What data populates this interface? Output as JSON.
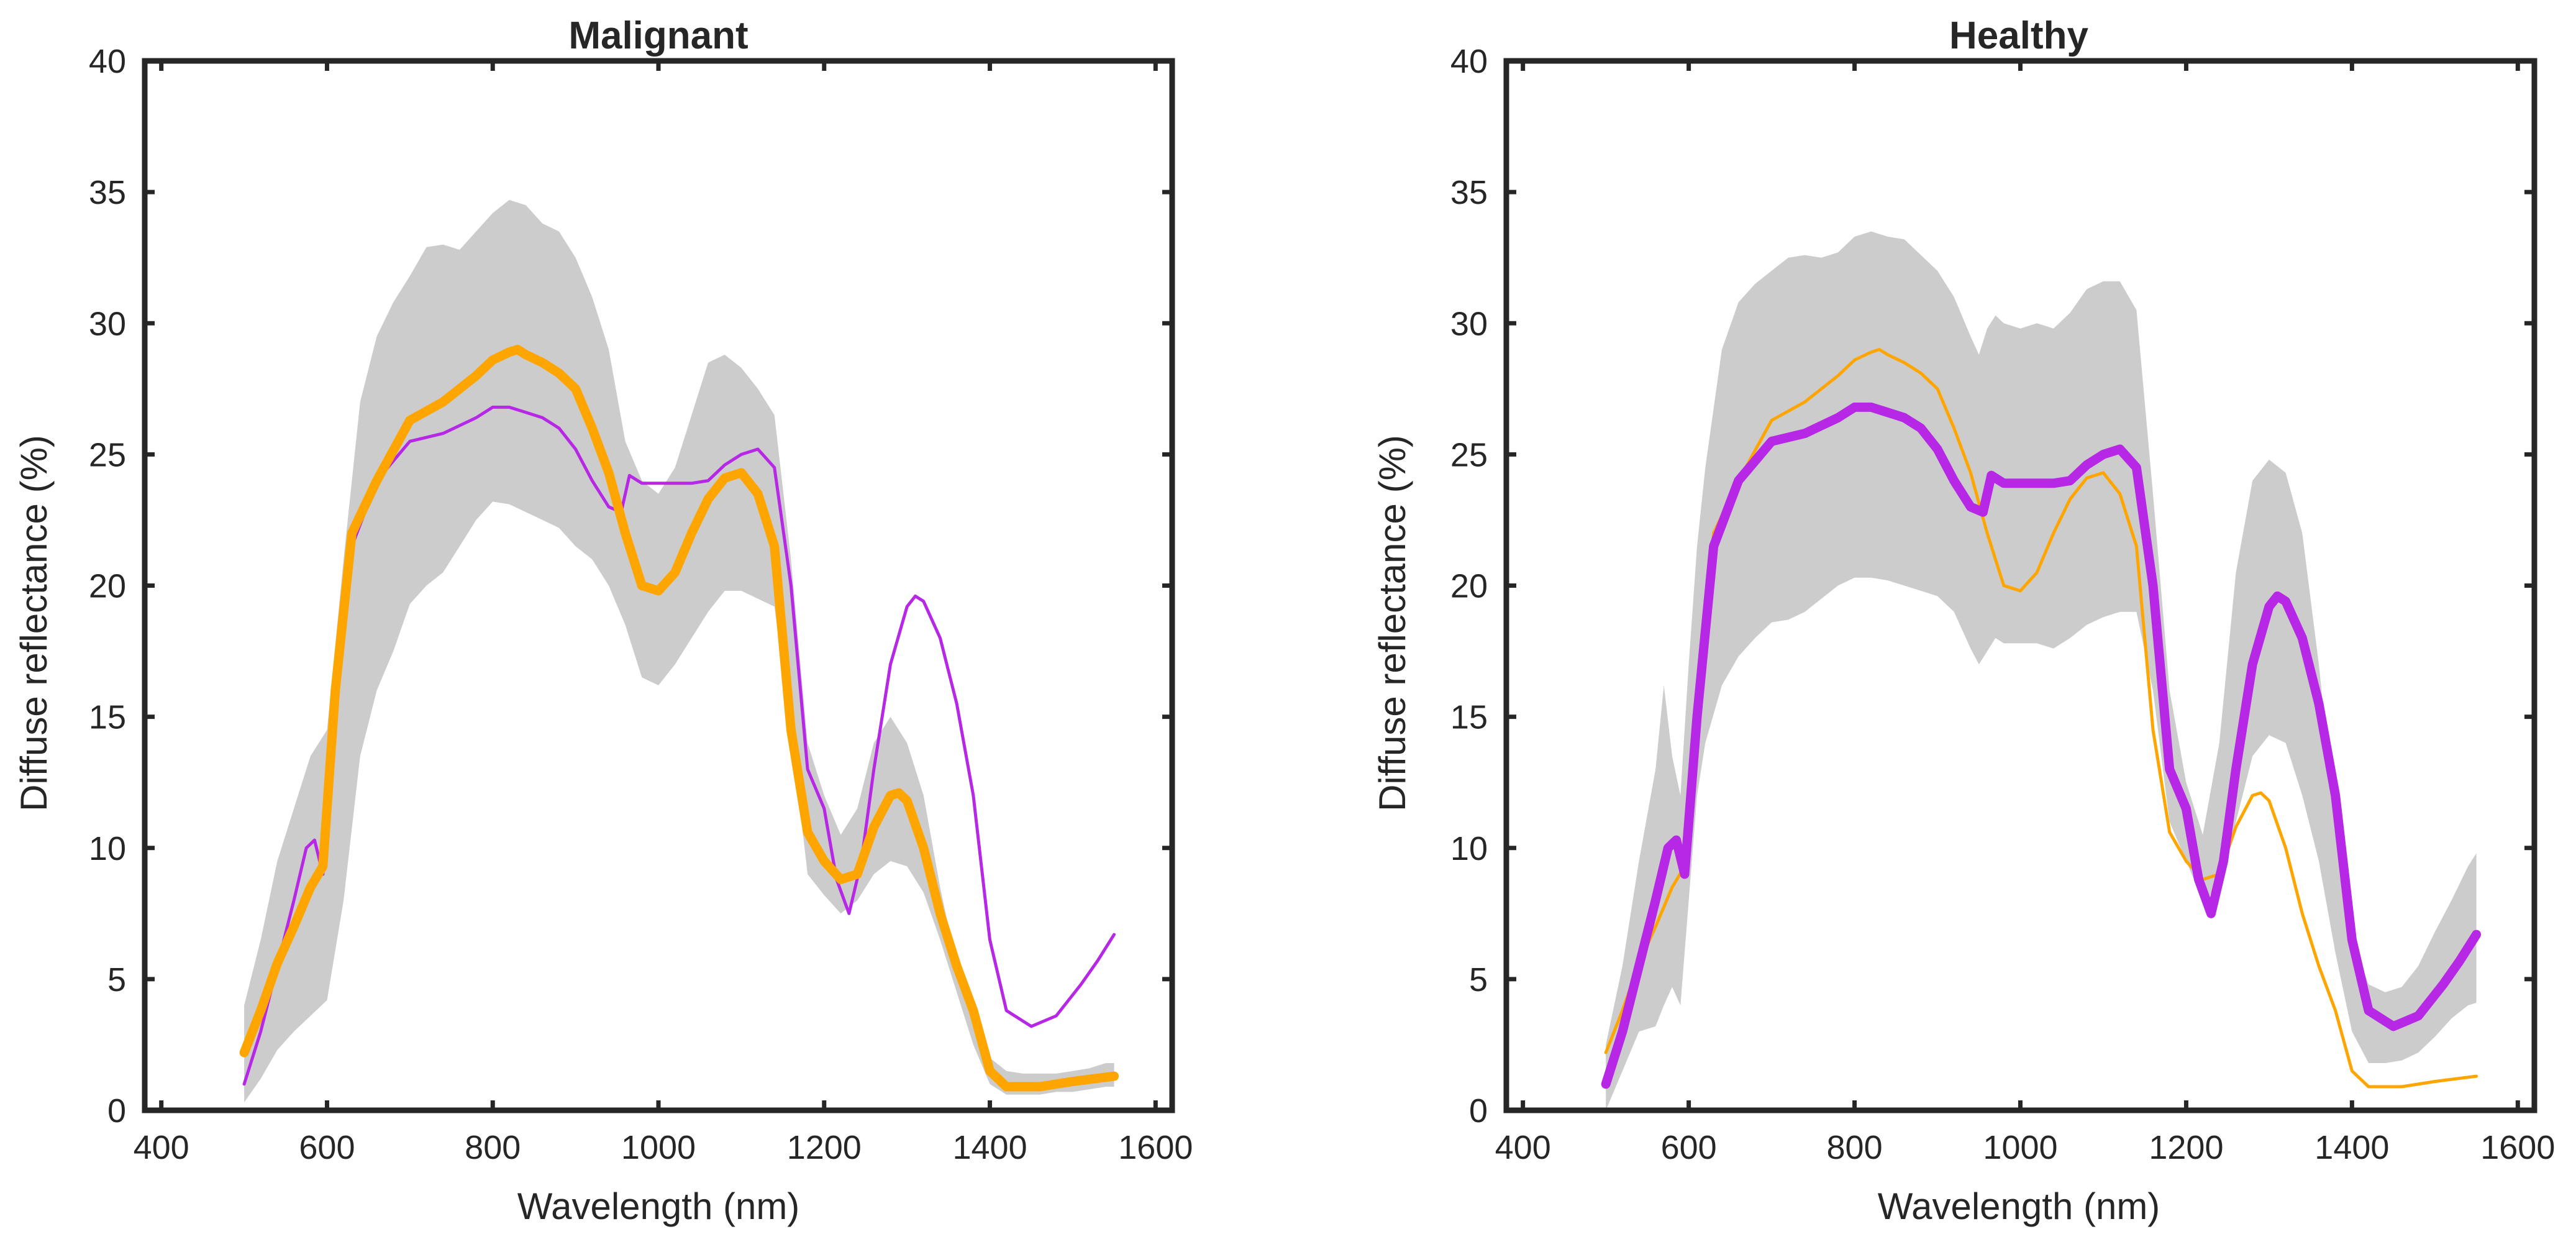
{
  "chart_data": [
    {
      "type": "area",
      "title": "Malignant",
      "xlabel": "Wavelength (nm)",
      "ylabel": "Diffuse reflectance (%)",
      "xlim": [
        380,
        1620
      ],
      "ylim": [
        0,
        40
      ],
      "xticks": [
        400,
        600,
        800,
        1000,
        1200,
        1400,
        1600
      ],
      "yticks": [
        0,
        5,
        10,
        15,
        20,
        25,
        30,
        35,
        40
      ],
      "grid": false,
      "legend": "none",
      "band": {
        "color": "#cccccc",
        "x": [
          500,
          520,
          540,
          560,
          580,
          600,
          620,
          640,
          660,
          680,
          700,
          720,
          740,
          760,
          780,
          800,
          820,
          840,
          860,
          880,
          900,
          920,
          940,
          960,
          980,
          1000,
          1020,
          1040,
          1060,
          1080,
          1100,
          1120,
          1140,
          1160,
          1180,
          1200,
          1220,
          1240,
          1260,
          1280,
          1300,
          1320,
          1340,
          1360,
          1380,
          1400,
          1420,
          1440,
          1460,
          1480,
          1500,
          1520,
          1540,
          1550
        ],
        "lower": [
          0.3,
          1.2,
          2.3,
          3.0,
          3.6,
          4.2,
          8.0,
          13.5,
          16.0,
          17.5,
          19.3,
          20.0,
          20.5,
          21.5,
          22.5,
          23.2,
          23.1,
          22.8,
          22.5,
          22.2,
          21.5,
          21.0,
          20.0,
          18.5,
          16.5,
          16.2,
          17.0,
          18.0,
          19.0,
          19.8,
          19.8,
          19.5,
          19.2,
          14.5,
          9.0,
          8.2,
          7.5,
          8.0,
          9.0,
          9.5,
          9.3,
          8.3,
          6.5,
          4.5,
          2.5,
          1.0,
          0.6,
          0.6,
          0.6,
          0.7,
          0.7,
          0.8,
          0.9,
          0.9
        ],
        "upper": [
          4.0,
          6.5,
          9.5,
          11.5,
          13.5,
          14.5,
          21.0,
          27.0,
          29.5,
          30.8,
          31.8,
          32.9,
          33.0,
          32.8,
          33.5,
          34.2,
          34.7,
          34.5,
          33.8,
          33.5,
          32.5,
          31.0,
          29.0,
          25.5,
          24.0,
          23.5,
          24.5,
          26.5,
          28.5,
          28.8,
          28.3,
          27.5,
          26.5,
          21.0,
          14.0,
          12.0,
          10.5,
          11.5,
          14.0,
          15.0,
          14.0,
          12.0,
          8.5,
          5.5,
          3.5,
          2.0,
          1.5,
          1.4,
          1.4,
          1.4,
          1.5,
          1.6,
          1.8,
          1.8
        ]
      },
      "series": [
        {
          "color": "#b727e6",
          "width": "thin",
          "x": [
            500,
            520,
            540,
            560,
            575,
            585,
            595,
            610,
            630,
            660,
            700,
            740,
            780,
            800,
            820,
            840,
            860,
            880,
            900,
            920,
            940,
            955,
            965,
            980,
            1000,
            1020,
            1040,
            1060,
            1080,
            1100,
            1120,
            1140,
            1160,
            1180,
            1200,
            1215,
            1230,
            1245,
            1260,
            1280,
            1300,
            1310,
            1320,
            1340,
            1360,
            1380,
            1400,
            1420,
            1450,
            1480,
            1510,
            1530,
            1550
          ],
          "y": [
            1.0,
            3.0,
            5.5,
            8.0,
            10.0,
            10.3,
            9.0,
            15.0,
            21.5,
            24.0,
            25.5,
            25.8,
            26.4,
            26.8,
            26.8,
            26.6,
            26.4,
            26.0,
            25.2,
            24.0,
            23.0,
            22.8,
            24.2,
            23.9,
            23.9,
            23.9,
            23.9,
            24.0,
            24.6,
            25.0,
            25.2,
            24.5,
            20.0,
            13.0,
            11.5,
            8.8,
            7.5,
            9.5,
            13.0,
            17.0,
            19.2,
            19.6,
            19.4,
            18.0,
            15.5,
            12.0,
            6.5,
            3.8,
            3.2,
            3.6,
            4.8,
            5.7,
            6.7
          ]
        },
        {
          "color": "#ffa500",
          "width": "thick",
          "x": [
            500,
            520,
            540,
            560,
            580,
            595,
            610,
            630,
            660,
            700,
            740,
            780,
            800,
            820,
            830,
            840,
            860,
            880,
            900,
            920,
            940,
            960,
            980,
            1000,
            1020,
            1040,
            1060,
            1080,
            1100,
            1120,
            1140,
            1160,
            1180,
            1200,
            1220,
            1240,
            1260,
            1280,
            1290,
            1300,
            1320,
            1340,
            1360,
            1380,
            1400,
            1420,
            1440,
            1460,
            1500,
            1550
          ],
          "y": [
            2.2,
            3.8,
            5.6,
            7.0,
            8.5,
            9.3,
            16.0,
            22.0,
            24.0,
            26.3,
            27.0,
            28.0,
            28.6,
            28.9,
            29.0,
            28.8,
            28.5,
            28.1,
            27.5,
            26.0,
            24.3,
            22.0,
            20.0,
            19.8,
            20.5,
            22.0,
            23.3,
            24.1,
            24.3,
            23.5,
            21.5,
            14.5,
            10.6,
            9.5,
            8.8,
            9.0,
            10.8,
            12.0,
            12.1,
            11.8,
            10.0,
            7.5,
            5.5,
            3.8,
            1.5,
            0.9,
            0.9,
            0.9,
            1.1,
            1.3
          ]
        }
      ]
    },
    {
      "type": "area",
      "title": "Healthy",
      "xlabel": "Wavelength (nm)",
      "ylabel": "Diffuse reflectance (%)",
      "xlim": [
        380,
        1620
      ],
      "ylim": [
        0,
        40
      ],
      "xticks": [
        400,
        600,
        800,
        1000,
        1200,
        1400,
        1600
      ],
      "yticks": [
        0,
        5,
        10,
        15,
        20,
        25,
        30,
        35,
        40
      ],
      "grid": false,
      "legend": "none",
      "band": {
        "color": "#cccccc",
        "x": [
          500,
          520,
          540,
          560,
          570,
          580,
          590,
          600,
          610,
          620,
          640,
          660,
          680,
          700,
          720,
          740,
          760,
          780,
          800,
          820,
          840,
          860,
          880,
          900,
          920,
          940,
          950,
          960,
          970,
          980,
          1000,
          1020,
          1040,
          1060,
          1080,
          1100,
          1120,
          1140,
          1160,
          1180,
          1200,
          1220,
          1240,
          1260,
          1280,
          1300,
          1320,
          1340,
          1360,
          1380,
          1400,
          1420,
          1440,
          1460,
          1480,
          1500,
          1520,
          1540,
          1550
        ],
        "lower": [
          0.0,
          1.5,
          3.0,
          3.2,
          4.0,
          4.7,
          4.0,
          8.0,
          12.0,
          14.0,
          16.2,
          17.3,
          18.0,
          18.6,
          18.7,
          19.0,
          19.5,
          20.0,
          20.3,
          20.3,
          20.2,
          20.0,
          19.8,
          19.6,
          19.0,
          17.6,
          17.0,
          17.5,
          18.0,
          17.8,
          17.8,
          17.8,
          17.6,
          18.0,
          18.5,
          18.8,
          19.0,
          19.0,
          16.0,
          11.0,
          9.5,
          8.0,
          8.5,
          11.0,
          13.5,
          14.3,
          14.0,
          12.0,
          9.5,
          6.0,
          3.0,
          1.8,
          1.8,
          1.9,
          2.2,
          2.8,
          3.5,
          4.0,
          4.1
        ],
        "upper": [
          2.5,
          5.5,
          9.5,
          13.0,
          16.2,
          13.5,
          12.0,
          17.0,
          21.5,
          24.5,
          29.0,
          30.8,
          31.5,
          32.0,
          32.5,
          32.6,
          32.5,
          32.7,
          33.3,
          33.5,
          33.3,
          33.2,
          32.6,
          32.0,
          31.0,
          29.5,
          28.8,
          29.8,
          30.3,
          30.0,
          29.8,
          30.0,
          29.8,
          30.4,
          31.3,
          31.6,
          31.6,
          30.5,
          23.5,
          16.0,
          12.5,
          10.5,
          14.0,
          20.5,
          24.0,
          24.8,
          24.3,
          22.0,
          17.0,
          11.0,
          6.5,
          4.8,
          4.5,
          4.7,
          5.5,
          6.8,
          8.0,
          9.3,
          9.8
        ]
      },
      "series": [
        {
          "color": "#ffa500",
          "width": "thin",
          "x": [
            500,
            520,
            540,
            560,
            580,
            595,
            610,
            630,
            660,
            700,
            740,
            780,
            800,
            820,
            830,
            840,
            860,
            880,
            900,
            920,
            940,
            960,
            980,
            1000,
            1020,
            1040,
            1060,
            1080,
            1100,
            1120,
            1140,
            1160,
            1180,
            1200,
            1220,
            1240,
            1260,
            1280,
            1290,
            1300,
            1320,
            1340,
            1360,
            1380,
            1400,
            1420,
            1440,
            1460,
            1500,
            1550
          ],
          "y": [
            2.2,
            3.8,
            5.6,
            7.0,
            8.5,
            9.3,
            16.0,
            22.0,
            24.0,
            26.3,
            27.0,
            28.0,
            28.6,
            28.9,
            29.0,
            28.8,
            28.5,
            28.1,
            27.5,
            26.0,
            24.3,
            22.0,
            20.0,
            19.8,
            20.5,
            22.0,
            23.3,
            24.1,
            24.3,
            23.5,
            21.5,
            14.5,
            10.6,
            9.5,
            8.8,
            9.0,
            10.8,
            12.0,
            12.1,
            11.8,
            10.0,
            7.5,
            5.5,
            3.8,
            1.5,
            0.9,
            0.9,
            0.9,
            1.1,
            1.3
          ]
        },
        {
          "color": "#b727e6",
          "width": "thick",
          "x": [
            500,
            520,
            540,
            560,
            575,
            585,
            595,
            610,
            630,
            660,
            700,
            740,
            780,
            800,
            820,
            840,
            860,
            880,
            900,
            920,
            940,
            955,
            965,
            980,
            1000,
            1020,
            1040,
            1060,
            1080,
            1100,
            1120,
            1140,
            1160,
            1180,
            1200,
            1215,
            1230,
            1245,
            1260,
            1280,
            1300,
            1310,
            1320,
            1340,
            1360,
            1380,
            1400,
            1420,
            1450,
            1480,
            1510,
            1530,
            1550
          ],
          "y": [
            1.0,
            3.0,
            5.5,
            8.0,
            10.0,
            10.3,
            9.0,
            15.0,
            21.5,
            24.0,
            25.5,
            25.8,
            26.4,
            26.8,
            26.8,
            26.6,
            26.4,
            26.0,
            25.2,
            24.0,
            23.0,
            22.8,
            24.2,
            23.9,
            23.9,
            23.9,
            23.9,
            24.0,
            24.6,
            25.0,
            25.2,
            24.5,
            20.0,
            13.0,
            11.5,
            8.8,
            7.5,
            9.5,
            13.0,
            17.0,
            19.2,
            19.6,
            19.4,
            18.0,
            15.5,
            12.0,
            6.5,
            3.8,
            3.2,
            3.6,
            4.8,
            5.7,
            6.7
          ]
        }
      ]
    }
  ]
}
